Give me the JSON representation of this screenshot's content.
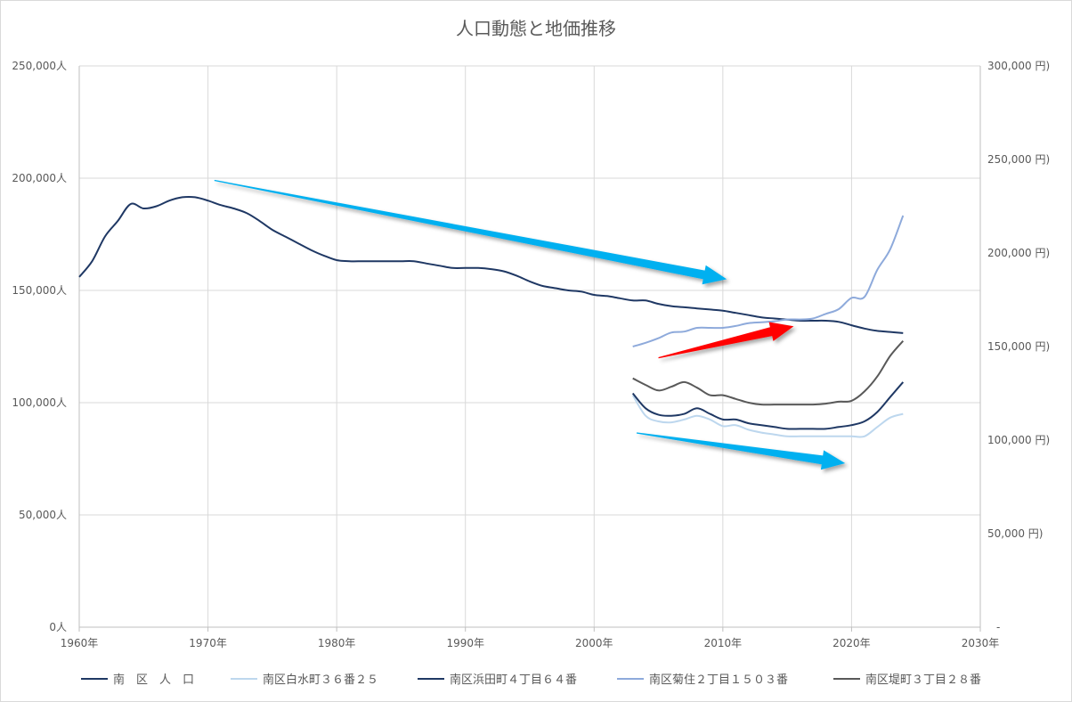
{
  "chart_data": {
    "type": "line",
    "title": "人口動態と地価推移",
    "x_ticks": [
      "1960年",
      "1970年",
      "1980年",
      "1990年",
      "2000年",
      "2010年",
      "2020年",
      "2030年"
    ],
    "xlim": [
      1960,
      2030
    ],
    "y_left": {
      "ticks": [
        "0人",
        "50,000人",
        "100,000人",
        "150,000人",
        "200,000人",
        "250,000人"
      ],
      "ylim": [
        0,
        250000
      ]
    },
    "y_right": {
      "ticks": [
        "-",
        "50,000 円)",
        "100,000 円)",
        "150,000 円)",
        "200,000 円)",
        "250,000 円)",
        "300,000 円)"
      ],
      "ylim": [
        0,
        300000
      ]
    },
    "grid": true,
    "legend_position": "bottom",
    "colors": {
      "population": "#1f3864",
      "shiramizu": "#bdd7ee",
      "hamada": "#1f3864",
      "kikusumi": "#8eaadb",
      "tsutsumi": "#595959",
      "arrow_blue": "#00b0f0",
      "arrow_red": "#ff0000"
    },
    "series": [
      {
        "name": "南　区　人　口",
        "axis": "left",
        "color": "#1f3864",
        "points": [
          [
            1960,
            156000
          ],
          [
            1961,
            163000
          ],
          [
            1962,
            174000
          ],
          [
            1963,
            181000
          ],
          [
            1964,
            188500
          ],
          [
            1965,
            186500
          ],
          [
            1966,
            187500
          ],
          [
            1967,
            190000
          ],
          [
            1968,
            191500
          ],
          [
            1969,
            191500
          ],
          [
            1970,
            190000
          ],
          [
            1971,
            188000
          ],
          [
            1972,
            186500
          ],
          [
            1973,
            184500
          ],
          [
            1974,
            181000
          ],
          [
            1975,
            177000
          ],
          [
            1976,
            174000
          ],
          [
            1977,
            171000
          ],
          [
            1978,
            168000
          ],
          [
            1979,
            165500
          ],
          [
            1980,
            163500
          ],
          [
            1981,
            163000
          ],
          [
            1982,
            163000
          ],
          [
            1983,
            163000
          ],
          [
            1984,
            163000
          ],
          [
            1985,
            163000
          ],
          [
            1986,
            163000
          ],
          [
            1987,
            162000
          ],
          [
            1988,
            161000
          ],
          [
            1989,
            160000
          ],
          [
            1990,
            160000
          ],
          [
            1991,
            160000
          ],
          [
            1992,
            159500
          ],
          [
            1993,
            158500
          ],
          [
            1994,
            156500
          ],
          [
            1995,
            154000
          ],
          [
            1996,
            152000
          ],
          [
            1997,
            151000
          ],
          [
            1998,
            150000
          ],
          [
            1999,
            149500
          ],
          [
            2000,
            148000
          ],
          [
            2001,
            147500
          ],
          [
            2002,
            146500
          ],
          [
            2003,
            145500
          ],
          [
            2004,
            145500
          ],
          [
            2005,
            144000
          ],
          [
            2006,
            143000
          ],
          [
            2007,
            142500
          ],
          [
            2008,
            142000
          ],
          [
            2009,
            141500
          ],
          [
            2010,
            141000
          ],
          [
            2011,
            140000
          ],
          [
            2012,
            139000
          ],
          [
            2013,
            138000
          ],
          [
            2014,
            137500
          ],
          [
            2015,
            137000
          ],
          [
            2016,
            136500
          ],
          [
            2017,
            136500
          ],
          [
            2018,
            136500
          ],
          [
            2019,
            136000
          ],
          [
            2020,
            134500
          ],
          [
            2021,
            133000
          ],
          [
            2022,
            132000
          ],
          [
            2023,
            131500
          ],
          [
            2024,
            131000
          ]
        ]
      },
      {
        "name": "南区白水町３６番２５",
        "axis": "right",
        "color": "#bdd7ee",
        "points": [
          [
            2003,
            124000
          ],
          [
            2004,
            113000
          ],
          [
            2005,
            110000
          ],
          [
            2006,
            109500
          ],
          [
            2007,
            111000
          ],
          [
            2008,
            113000
          ],
          [
            2009,
            111000
          ],
          [
            2010,
            107500
          ],
          [
            2011,
            108000
          ],
          [
            2012,
            105500
          ],
          [
            2013,
            104000
          ],
          [
            2014,
            103000
          ],
          [
            2015,
            102000
          ],
          [
            2016,
            102000
          ],
          [
            2017,
            102000
          ],
          [
            2018,
            102000
          ],
          [
            2019,
            102000
          ],
          [
            2020,
            102000
          ],
          [
            2021,
            102000
          ],
          [
            2022,
            107000
          ],
          [
            2023,
            112000
          ],
          [
            2024,
            114000
          ]
        ]
      },
      {
        "name": "南区浜田町４丁目６４番",
        "axis": "right",
        "color": "#1f3864",
        "points": [
          [
            2003,
            125000
          ],
          [
            2004,
            117000
          ],
          [
            2005,
            113500
          ],
          [
            2006,
            113000
          ],
          [
            2007,
            114000
          ],
          [
            2008,
            117000
          ],
          [
            2009,
            114000
          ],
          [
            2010,
            111000
          ],
          [
            2011,
            111000
          ],
          [
            2012,
            109000
          ],
          [
            2013,
            108000
          ],
          [
            2014,
            107000
          ],
          [
            2015,
            106000
          ],
          [
            2016,
            106000
          ],
          [
            2017,
            106000
          ],
          [
            2018,
            106000
          ],
          [
            2019,
            107000
          ],
          [
            2020,
            108000
          ],
          [
            2021,
            110000
          ],
          [
            2022,
            115000
          ],
          [
            2023,
            123000
          ],
          [
            2024,
            131000
          ]
        ]
      },
      {
        "name": "南区菊住２丁目１５０３番",
        "axis": "right",
        "color": "#8eaadb",
        "points": [
          [
            2003,
            150000
          ],
          [
            2004,
            152000
          ],
          [
            2005,
            154500
          ],
          [
            2006,
            157500
          ],
          [
            2007,
            158000
          ],
          [
            2008,
            160000
          ],
          [
            2009,
            160000
          ],
          [
            2010,
            160000
          ],
          [
            2011,
            161000
          ],
          [
            2012,
            162500
          ],
          [
            2013,
            163000
          ],
          [
            2014,
            163500
          ],
          [
            2015,
            164500
          ],
          [
            2016,
            164500
          ],
          [
            2017,
            165000
          ],
          [
            2018,
            167500
          ],
          [
            2019,
            170000
          ],
          [
            2020,
            176000
          ],
          [
            2021,
            176500
          ],
          [
            2022,
            191000
          ],
          [
            2023,
            202000
          ],
          [
            2024,
            220000
          ]
        ]
      },
      {
        "name": "南区堤町３丁目２８番",
        "axis": "right",
        "color": "#595959",
        "points": [
          [
            2003,
            133000
          ],
          [
            2004,
            129500
          ],
          [
            2005,
            126500
          ],
          [
            2006,
            128500
          ],
          [
            2007,
            131000
          ],
          [
            2008,
            128000
          ],
          [
            2009,
            124000
          ],
          [
            2010,
            124000
          ],
          [
            2011,
            122000
          ],
          [
            2012,
            120000
          ],
          [
            2013,
            119000
          ],
          [
            2014,
            119000
          ],
          [
            2015,
            119000
          ],
          [
            2016,
            119000
          ],
          [
            2017,
            119000
          ],
          [
            2018,
            119500
          ],
          [
            2019,
            120500
          ],
          [
            2020,
            121000
          ],
          [
            2021,
            126000
          ],
          [
            2022,
            134000
          ],
          [
            2023,
            145000
          ],
          [
            2024,
            153000
          ]
        ]
      }
    ],
    "annotations": [
      {
        "type": "arrow",
        "color": "#00b0f0",
        "from": [
          1970.5,
          199000
        ],
        "to": [
          2010.3,
          155000
        ],
        "axis": "left"
      },
      {
        "type": "arrow",
        "color": "#ff0000",
        "from": [
          2005,
          120000
        ],
        "to": [
          2015.5,
          134000
        ],
        "axis": "left"
      },
      {
        "type": "arrow",
        "color": "#00b0f0",
        "from": [
          2003.3,
          86500
        ],
        "to": [
          2019.5,
          73000
        ],
        "axis": "left"
      }
    ]
  }
}
